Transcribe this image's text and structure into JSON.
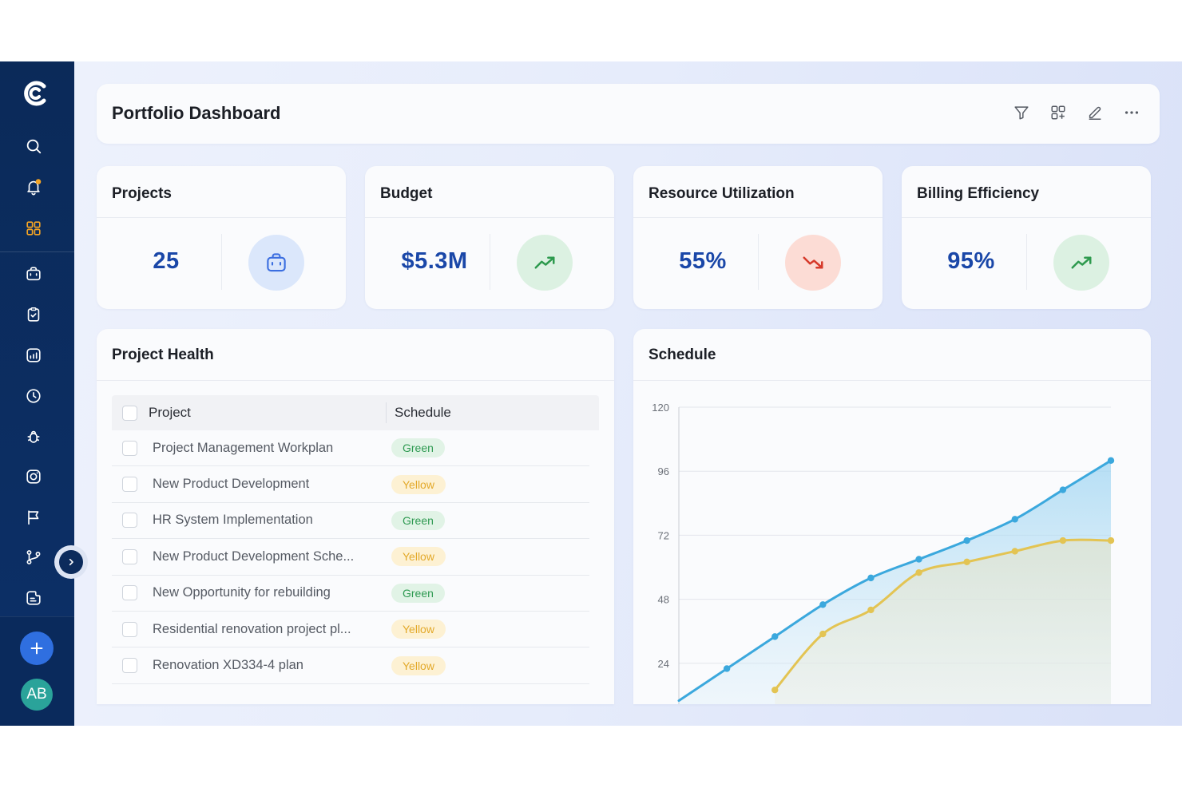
{
  "header": {
    "title": "Portfolio Dashboard",
    "tools": [
      "filter-icon",
      "grid-add-icon",
      "edit-icon",
      "more-icon"
    ]
  },
  "sidebar": {
    "items": [
      "search-icon",
      "bell-icon",
      "dashboard-icon",
      "briefcase-icon",
      "clipboard-check-icon",
      "chart-icon",
      "clock-icon",
      "bug-icon",
      "instagram-icon",
      "flag-icon",
      "git-branch-icon",
      "notes-icon"
    ],
    "notification_dot_color": "#f5a524",
    "active_color": "#f5a524",
    "avatar_initials": "AB"
  },
  "stats": [
    {
      "title": "Projects",
      "value": "25",
      "icon": "briefcase-icon",
      "circle_color": "#dbe7fb",
      "icon_color": "#3b6ee0"
    },
    {
      "title": "Budget",
      "value": "$5.3M",
      "icon": "trend-up-icon",
      "circle_color": "#dcf1e2",
      "icon_color": "#2e9a4e"
    },
    {
      "title": "Resource Utilization",
      "value": "55%",
      "icon": "trend-down-icon",
      "circle_color": "#fcdcd5",
      "icon_color": "#d63a2b"
    },
    {
      "title": "Billing Efficiency",
      "value": "95%",
      "icon": "trend-up-icon",
      "circle_color": "#dcf1e2",
      "icon_color": "#2e9a4e"
    }
  ],
  "project_health": {
    "title": "Project Health",
    "columns": [
      "Project",
      "Schedule"
    ],
    "rows": [
      {
        "project": "Project Management Workplan",
        "schedule": "Green"
      },
      {
        "project": "New Product Development",
        "schedule": "Yellow"
      },
      {
        "project": "HR System Implementation",
        "schedule": "Green"
      },
      {
        "project": "New Product Development Sche...",
        "schedule": "Yellow"
      },
      {
        "project": "New Opportunity for rebuilding",
        "schedule": "Green"
      },
      {
        "project": "Residential renovation project pl...",
        "schedule": "Yellow"
      },
      {
        "project": "Renovation XD334-4 plan",
        "schedule": "Yellow"
      }
    ]
  },
  "schedule": {
    "title": "Schedule"
  },
  "chart_data": {
    "type": "area",
    "title": "Schedule",
    "ylim": [
      0,
      120
    ],
    "yticks": [
      24,
      48,
      72,
      96,
      120
    ],
    "grid": true,
    "x": [
      0,
      1,
      2,
      3,
      4,
      5,
      6,
      7,
      8,
      9
    ],
    "series": [
      {
        "color": "#3ba8dd",
        "values": [
          10,
          22,
          34,
          46,
          56,
          63,
          70,
          78,
          89,
          100
        ]
      },
      {
        "color": "#e3c453",
        "values": [
          null,
          null,
          14,
          35,
          44,
          58,
          62,
          66,
          70,
          70
        ]
      }
    ]
  }
}
